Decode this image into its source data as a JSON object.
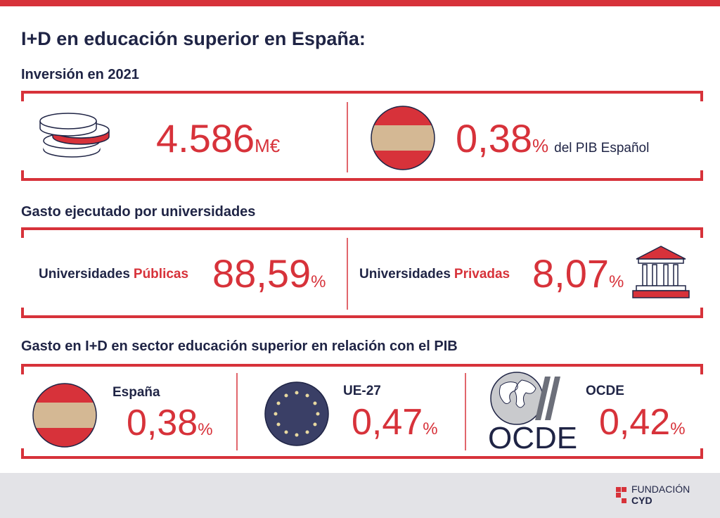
{
  "header": {
    "title": "I+D en educación superior en España:"
  },
  "sections": [
    {
      "title": "Inversión en 2021",
      "items": [
        {
          "value": "4.586",
          "unit": "M€"
        },
        {
          "value": "0,38",
          "unit": "%",
          "note": "del PIB Español"
        }
      ]
    },
    {
      "title": "Gasto ejecutado por universidades",
      "items": [
        {
          "label": "Universidades",
          "highlight": "Públicas",
          "value": "88,59",
          "unit": "%"
        },
        {
          "label": "Universidades",
          "highlight": "Privadas",
          "value": "8,07",
          "unit": "%"
        }
      ]
    },
    {
      "title": "Gasto en I+D en sector educación superior en relación con el PIB",
      "items": [
        {
          "label": "España",
          "value": "0,38",
          "unit": "%"
        },
        {
          "label": "UE-27",
          "value": "0,47",
          "unit": "%"
        },
        {
          "label": "OCDE",
          "value": "0,42",
          "unit": "%"
        }
      ]
    }
  ],
  "logos": {
    "ocde": "OCDE"
  },
  "footer": {
    "brand_top": "FUNDACIÓN",
    "brand_bottom": "CYD"
  }
}
